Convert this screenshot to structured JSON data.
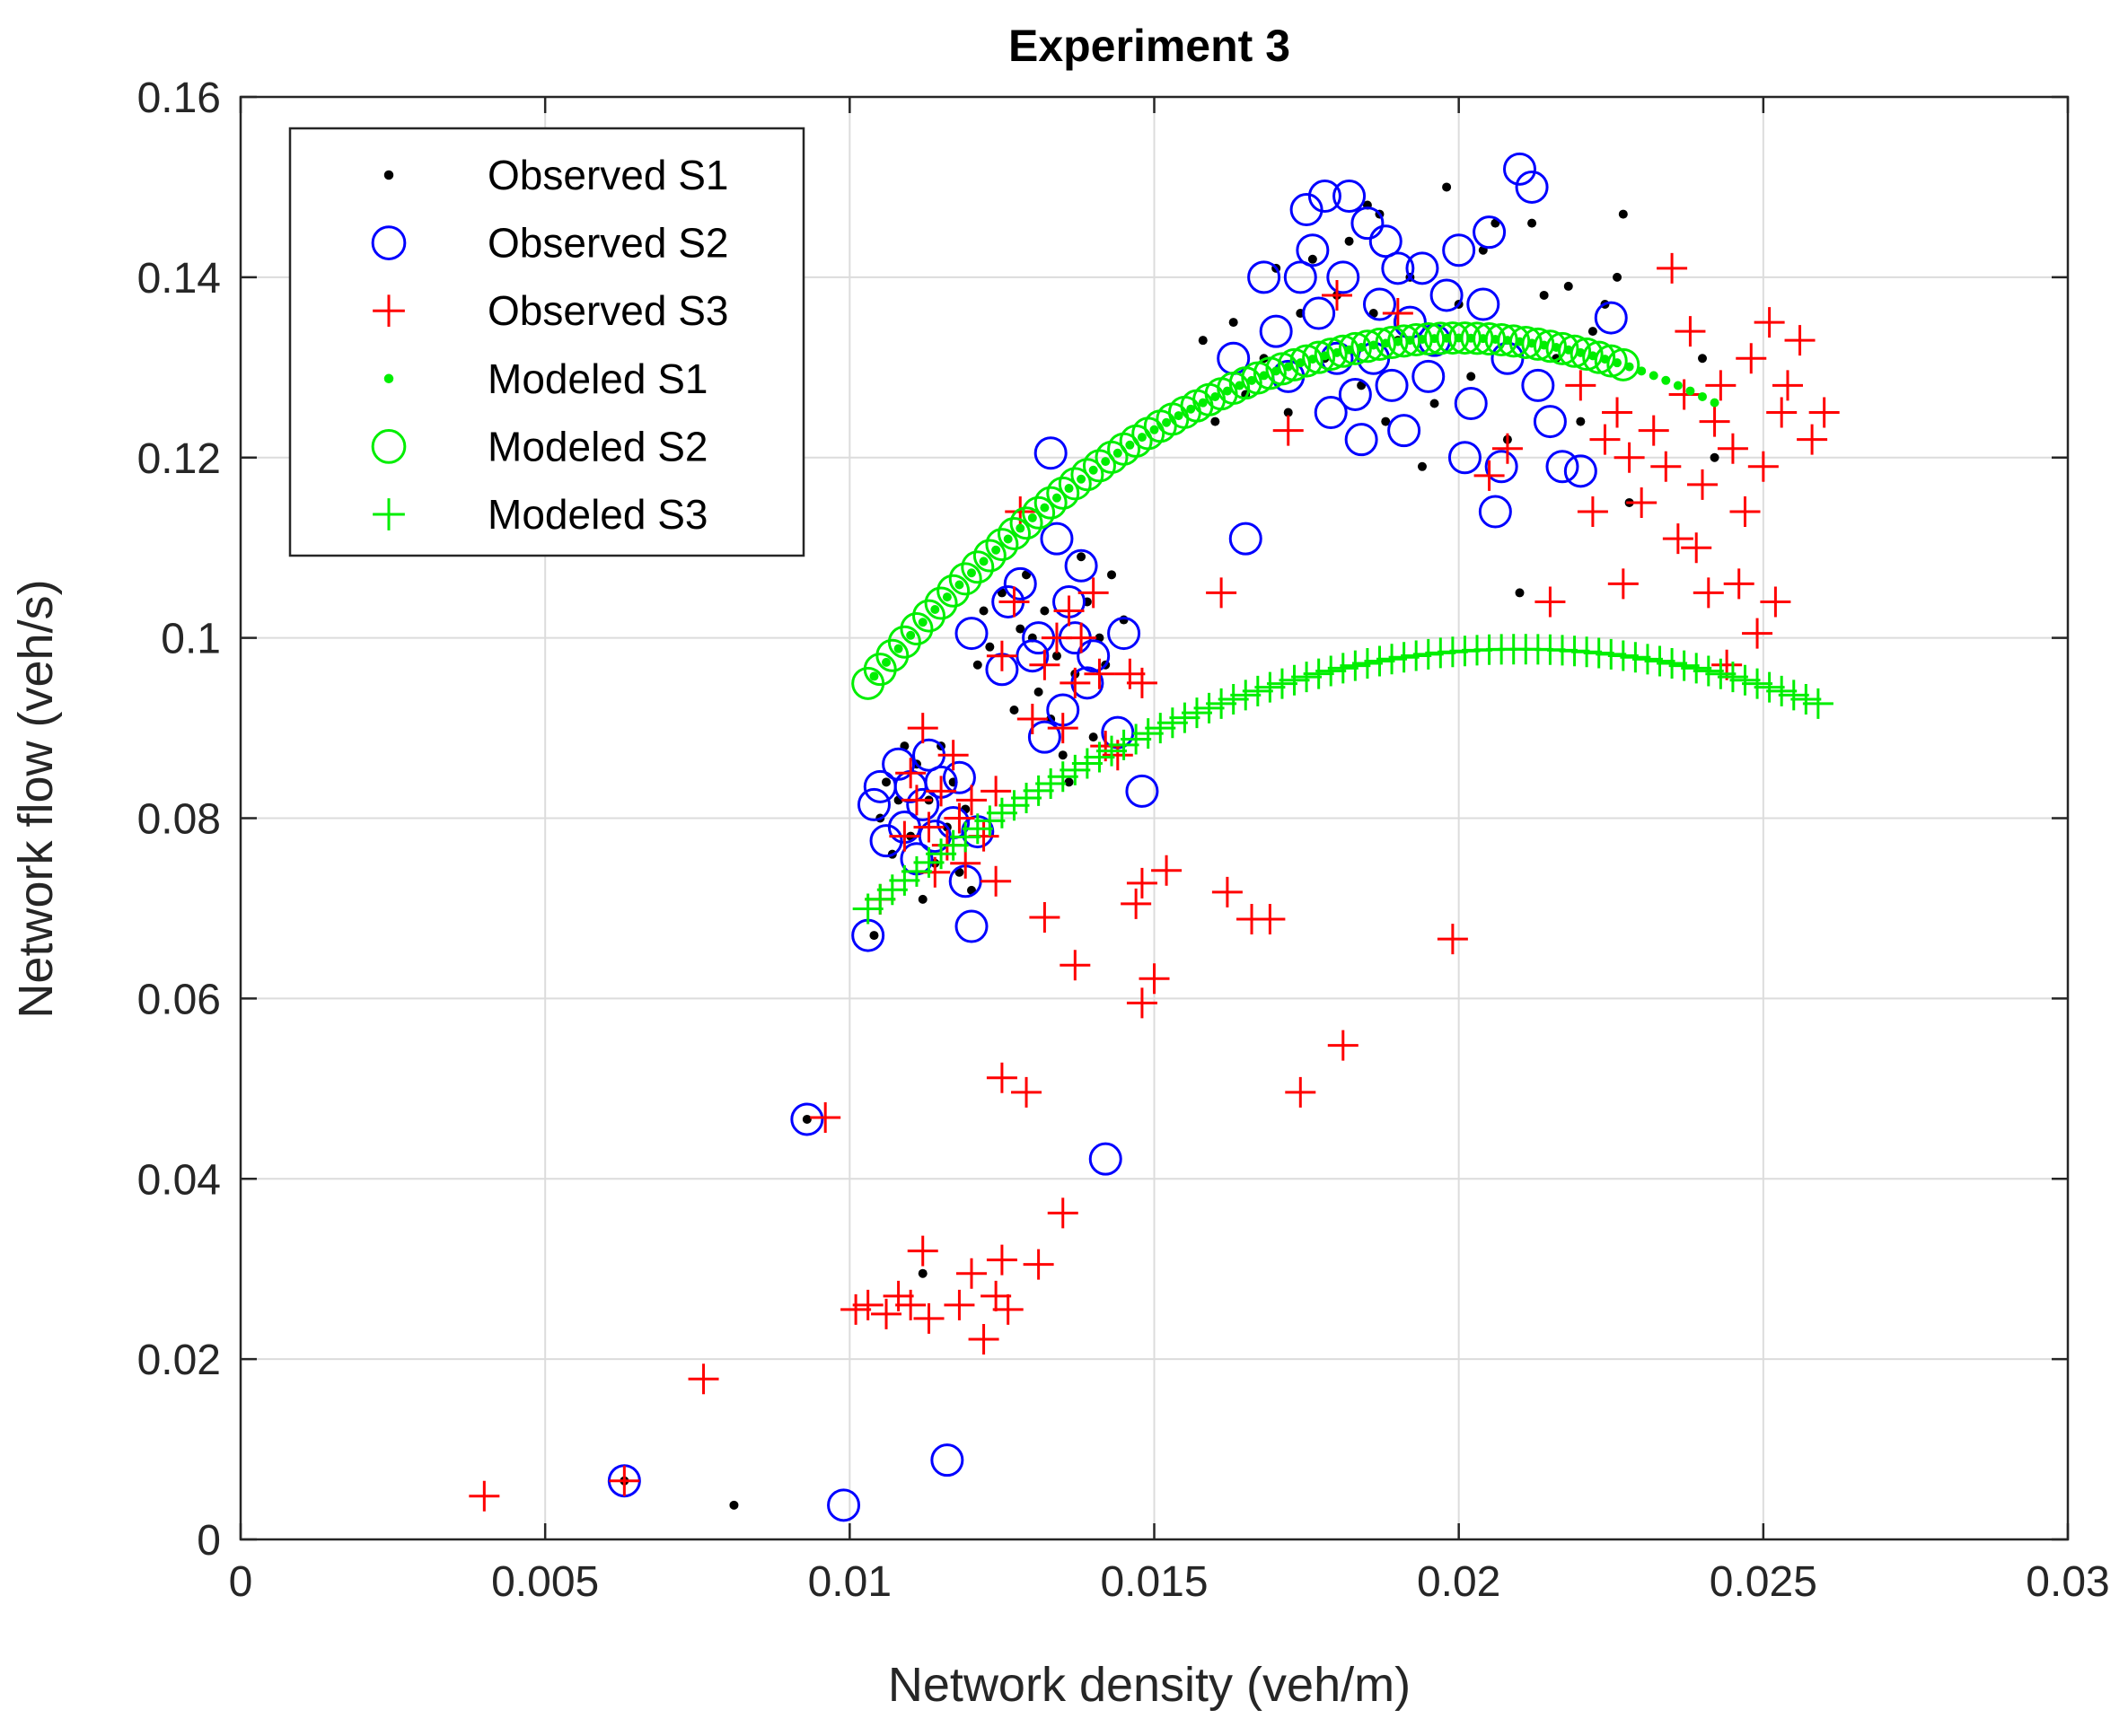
{
  "chart_data": {
    "type": "scatter",
    "title": "Experiment 3",
    "xlabel": "Network density (veh/m)",
    "ylabel": "Network flow (veh/s)",
    "xlim": [
      0,
      0.03
    ],
    "ylim": [
      0,
      0.16
    ],
    "xticks": [
      0,
      0.005,
      0.01,
      0.015,
      0.02,
      0.025,
      0.03
    ],
    "xtick_labels": [
      "0",
      "0.005",
      "0.01",
      "0.015",
      "0.02",
      "0.025",
      "0.03"
    ],
    "yticks": [
      0,
      0.02,
      0.04,
      0.06,
      0.08,
      0.1,
      0.12,
      0.14,
      0.16
    ],
    "ytick_labels": [
      "0",
      "0.02",
      "0.04",
      "0.06",
      "0.08",
      "0.1",
      "0.12",
      "0.14",
      "0.16"
    ],
    "grid": true,
    "legend_position": "top-left",
    "series": [
      {
        "name": "Observed S1",
        "marker": "dot",
        "color": "#000000",
        "points": [
          [
            0.0063,
            0.0065
          ],
          [
            0.0081,
            0.0038
          ],
          [
            0.0093,
            0.0466
          ],
          [
            0.0104,
            0.067
          ],
          [
            0.0105,
            0.08
          ],
          [
            0.0106,
            0.084
          ],
          [
            0.0107,
            0.076
          ],
          [
            0.0108,
            0.082
          ],
          [
            0.0109,
            0.088
          ],
          [
            0.011,
            0.078
          ],
          [
            0.0111,
            0.086
          ],
          [
            0.0112,
            0.071
          ],
          [
            0.0112,
            0.0295
          ],
          [
            0.0113,
            0.082
          ],
          [
            0.0114,
            0.075
          ],
          [
            0.0115,
            0.088
          ],
          [
            0.0116,
            0.079
          ],
          [
            0.0117,
            0.084
          ],
          [
            0.0118,
            0.074
          ],
          [
            0.0119,
            0.081
          ],
          [
            0.012,
            0.072
          ],
          [
            0.0121,
            0.097
          ],
          [
            0.0122,
            0.103
          ],
          [
            0.0123,
            0.099
          ],
          [
            0.0125,
            0.105
          ],
          [
            0.0127,
            0.092
          ],
          [
            0.0128,
            0.101
          ],
          [
            0.0129,
            0.107
          ],
          [
            0.013,
            0.1
          ],
          [
            0.0131,
            0.094
          ],
          [
            0.0132,
            0.103
          ],
          [
            0.0133,
            0.091
          ],
          [
            0.0134,
            0.098
          ],
          [
            0.0135,
            0.087
          ],
          [
            0.0136,
            0.084
          ],
          [
            0.0137,
            0.096
          ],
          [
            0.0138,
            0.109
          ],
          [
            0.0139,
            0.104
          ],
          [
            0.014,
            0.089
          ],
          [
            0.0141,
            0.1
          ],
          [
            0.0142,
            0.097
          ],
          [
            0.0143,
            0.107
          ],
          [
            0.0145,
            0.102
          ],
          [
            0.0158,
            0.133
          ],
          [
            0.016,
            0.124
          ],
          [
            0.0163,
            0.135
          ],
          [
            0.0165,
            0.127
          ],
          [
            0.0168,
            0.131
          ],
          [
            0.017,
            0.141
          ],
          [
            0.0172,
            0.125
          ],
          [
            0.0174,
            0.136
          ],
          [
            0.0176,
            0.142
          ],
          [
            0.0178,
            0.131
          ],
          [
            0.018,
            0.138
          ],
          [
            0.0182,
            0.144
          ],
          [
            0.0184,
            0.128
          ],
          [
            0.0185,
            0.148
          ],
          [
            0.0186,
            0.136
          ],
          [
            0.0187,
            0.147
          ],
          [
            0.0188,
            0.124
          ],
          [
            0.019,
            0.133
          ],
          [
            0.0192,
            0.14
          ],
          [
            0.0194,
            0.119
          ],
          [
            0.0196,
            0.126
          ],
          [
            0.0198,
            0.15
          ],
          [
            0.02,
            0.137
          ],
          [
            0.0202,
            0.129
          ],
          [
            0.0204,
            0.143
          ],
          [
            0.0206,
            0.146
          ],
          [
            0.0208,
            0.122
          ],
          [
            0.021,
            0.105
          ],
          [
            0.0212,
            0.146
          ],
          [
            0.0214,
            0.138
          ],
          [
            0.0216,
            0.131
          ],
          [
            0.0218,
            0.139
          ],
          [
            0.022,
            0.124
          ],
          [
            0.0222,
            0.134
          ],
          [
            0.0224,
            0.137
          ],
          [
            0.0226,
            0.14
          ],
          [
            0.0227,
            0.147
          ],
          [
            0.0228,
            0.115
          ],
          [
            0.024,
            0.131
          ],
          [
            0.0242,
            0.12
          ]
        ]
      },
      {
        "name": "Observed S2",
        "marker": "circle",
        "color": "#0000ff",
        "points": [
          [
            0.0063,
            0.0065
          ],
          [
            0.0093,
            0.0466
          ],
          [
            0.0099,
            0.0038
          ],
          [
            0.0103,
            0.067
          ],
          [
            0.0104,
            0.0815
          ],
          [
            0.0105,
            0.0835
          ],
          [
            0.0106,
            0.0775
          ],
          [
            0.0108,
            0.086
          ],
          [
            0.0109,
            0.079
          ],
          [
            0.011,
            0.0835
          ],
          [
            0.0111,
            0.0755
          ],
          [
            0.0112,
            0.0815
          ],
          [
            0.0113,
            0.087
          ],
          [
            0.0114,
            0.078
          ],
          [
            0.0115,
            0.084
          ],
          [
            0.0116,
            0.0088
          ],
          [
            0.0117,
            0.0795
          ],
          [
            0.0118,
            0.0845
          ],
          [
            0.0119,
            0.073
          ],
          [
            0.012,
            0.068
          ],
          [
            0.0121,
            0.0785
          ],
          [
            0.012,
            0.1005
          ],
          [
            0.0125,
            0.0965
          ],
          [
            0.0126,
            0.104
          ],
          [
            0.0128,
            0.106
          ],
          [
            0.013,
            0.098
          ],
          [
            0.0131,
            0.1
          ],
          [
            0.0132,
            0.089
          ],
          [
            0.0133,
            0.1205
          ],
          [
            0.0134,
            0.111
          ],
          [
            0.0135,
            0.092
          ],
          [
            0.0136,
            0.104
          ],
          [
            0.0137,
            0.1
          ],
          [
            0.0138,
            0.108
          ],
          [
            0.0139,
            0.095
          ],
          [
            0.014,
            0.098
          ],
          [
            0.0142,
            0.0422
          ],
          [
            0.0144,
            0.0895
          ],
          [
            0.0145,
            0.1005
          ],
          [
            0.0148,
            0.083
          ],
          [
            0.0163,
            0.131
          ],
          [
            0.0165,
            0.111
          ],
          [
            0.0168,
            0.14
          ],
          [
            0.017,
            0.134
          ],
          [
            0.0172,
            0.129
          ],
          [
            0.0174,
            0.14
          ],
          [
            0.0175,
            0.1475
          ],
          [
            0.0176,
            0.143
          ],
          [
            0.0177,
            0.136
          ],
          [
            0.0178,
            0.149
          ],
          [
            0.0179,
            0.125
          ],
          [
            0.018,
            0.131
          ],
          [
            0.0181,
            0.14
          ],
          [
            0.0182,
            0.149
          ],
          [
            0.0183,
            0.127
          ],
          [
            0.0184,
            0.122
          ],
          [
            0.0185,
            0.146
          ],
          [
            0.0186,
            0.131
          ],
          [
            0.0187,
            0.137
          ],
          [
            0.0188,
            0.144
          ],
          [
            0.0189,
            0.128
          ],
          [
            0.019,
            0.141
          ],
          [
            0.0191,
            0.123
          ],
          [
            0.0192,
            0.135
          ],
          [
            0.0194,
            0.141
          ],
          [
            0.0195,
            0.129
          ],
          [
            0.0196,
            0.133
          ],
          [
            0.0198,
            0.138
          ],
          [
            0.02,
            0.143
          ],
          [
            0.0201,
            0.12
          ],
          [
            0.0202,
            0.126
          ],
          [
            0.0204,
            0.137
          ],
          [
            0.0205,
            0.145
          ],
          [
            0.0206,
            0.114
          ],
          [
            0.0207,
            0.119
          ],
          [
            0.0208,
            0.131
          ],
          [
            0.021,
            0.152
          ],
          [
            0.0212,
            0.15
          ],
          [
            0.0213,
            0.128
          ],
          [
            0.0215,
            0.124
          ],
          [
            0.0217,
            0.119
          ],
          [
            0.022,
            0.1185
          ],
          [
            0.0225,
            0.1355
          ]
        ]
      },
      {
        "name": "Observed S3",
        "marker": "plus",
        "color": "#ff0000",
        "points": [
          [
            0.004,
            0.0048
          ],
          [
            0.0063,
            0.0065
          ],
          [
            0.0076,
            0.0178
          ],
          [
            0.0096,
            0.0468
          ],
          [
            0.0101,
            0.0255
          ],
          [
            0.0103,
            0.026
          ],
          [
            0.0106,
            0.025
          ],
          [
            0.0108,
            0.027
          ],
          [
            0.011,
            0.026
          ],
          [
            0.0112,
            0.032
          ],
          [
            0.0113,
            0.0245
          ],
          [
            0.0118,
            0.026
          ],
          [
            0.012,
            0.0295
          ],
          [
            0.0122,
            0.0222
          ],
          [
            0.0124,
            0.027
          ],
          [
            0.0125,
            0.031
          ],
          [
            0.0126,
            0.0255
          ],
          [
            0.0131,
            0.0305
          ],
          [
            0.0135,
            0.0362
          ],
          [
            0.0125,
            0.0512
          ],
          [
            0.0129,
            0.0496
          ],
          [
            0.0132,
            0.069
          ],
          [
            0.0137,
            0.0637
          ],
          [
            0.0147,
            0.0705
          ],
          [
            0.0148,
            0.0595
          ],
          [
            0.015,
            0.0622
          ],
          [
            0.0148,
            0.0728
          ],
          [
            0.0152,
            0.0742
          ],
          [
            0.0162,
            0.0718
          ],
          [
            0.0166,
            0.0688
          ],
          [
            0.0169,
            0.0688
          ],
          [
            0.0174,
            0.0496
          ],
          [
            0.0181,
            0.0548
          ],
          [
            0.0199,
            0.0666
          ],
          [
            0.0105,
            0.071
          ],
          [
            0.0109,
            0.078
          ],
          [
            0.011,
            0.085
          ],
          [
            0.0111,
            0.082
          ],
          [
            0.0112,
            0.09
          ],
          [
            0.0113,
            0.079
          ],
          [
            0.0114,
            0.074
          ],
          [
            0.0115,
            0.083
          ],
          [
            0.0116,
            0.077
          ],
          [
            0.0117,
            0.087
          ],
          [
            0.0118,
            0.08
          ],
          [
            0.0119,
            0.075
          ],
          [
            0.012,
            0.082
          ],
          [
            0.0122,
            0.078
          ],
          [
            0.0124,
            0.083
          ],
          [
            0.0124,
            0.073
          ],
          [
            0.0125,
            0.098
          ],
          [
            0.0127,
            0.104
          ],
          [
            0.0128,
            0.114
          ],
          [
            0.013,
            0.091
          ],
          [
            0.0132,
            0.097
          ],
          [
            0.0134,
            0.1
          ],
          [
            0.0135,
            0.09
          ],
          [
            0.0136,
            0.103
          ],
          [
            0.0137,
            0.095
          ],
          [
            0.0138,
            0.1
          ],
          [
            0.014,
            0.105
          ],
          [
            0.0141,
            0.096
          ],
          [
            0.0142,
            0.088
          ],
          [
            0.0144,
            0.087
          ],
          [
            0.0146,
            0.096
          ],
          [
            0.0148,
            0.095
          ],
          [
            0.0161,
            0.105
          ],
          [
            0.0172,
            0.123
          ],
          [
            0.018,
            0.138
          ],
          [
            0.019,
            0.136
          ],
          [
            0.0205,
            0.118
          ],
          [
            0.0208,
            0.121
          ],
          [
            0.0215,
            0.104
          ],
          [
            0.022,
            0.128
          ],
          [
            0.0222,
            0.114
          ],
          [
            0.0224,
            0.122
          ],
          [
            0.0226,
            0.125
          ],
          [
            0.0227,
            0.106
          ],
          [
            0.0228,
            0.12
          ],
          [
            0.023,
            0.115
          ],
          [
            0.0232,
            0.123
          ],
          [
            0.0234,
            0.119
          ],
          [
            0.0235,
            0.141
          ],
          [
            0.0236,
            0.111
          ],
          [
            0.0237,
            0.127
          ],
          [
            0.0238,
            0.134
          ],
          [
            0.0239,
            0.11
          ],
          [
            0.024,
            0.117
          ],
          [
            0.0241,
            0.105
          ],
          [
            0.0242,
            0.124
          ],
          [
            0.0243,
            0.128
          ],
          [
            0.0244,
            0.097
          ],
          [
            0.0245,
            0.121
          ],
          [
            0.0246,
            0.106
          ],
          [
            0.0247,
            0.114
          ],
          [
            0.0248,
            0.131
          ],
          [
            0.0249,
            0.1005
          ],
          [
            0.025,
            0.119
          ],
          [
            0.0251,
            0.135
          ],
          [
            0.0252,
            0.104
          ],
          [
            0.0253,
            0.125
          ],
          [
            0.0254,
            0.128
          ],
          [
            0.0256,
            0.133
          ],
          [
            0.0258,
            0.122
          ],
          [
            0.026,
            0.125
          ]
        ]
      },
      {
        "name": "Modeled S1",
        "marker": "dot",
        "color": "#00ee00",
        "curve": {
          "a": -407.14,
          "b": 16.286,
          "c": -0.0296,
          "xmin": 0.0104,
          "xmax": 0.0242,
          "step": 0.0002
        }
      },
      {
        "name": "Modeled S2",
        "marker": "circle",
        "color": "#00ee00",
        "curve": {
          "a": -407.14,
          "b": 16.286,
          "c": -0.0296,
          "xmin": 0.0103,
          "xmax": 0.0228,
          "step": 0.0002
        }
      },
      {
        "name": "Modeled S3",
        "marker": "plus",
        "color": "#00ee00",
        "curve": {
          "a": -251.6,
          "b": 10.567,
          "c": -0.0122,
          "xmin": 0.0103,
          "xmax": 0.026,
          "step": 0.0002
        }
      }
    ]
  }
}
